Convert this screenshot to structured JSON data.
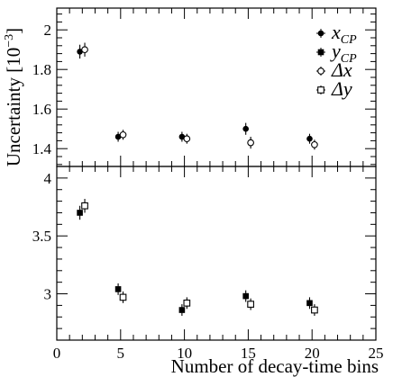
{
  "chart_data": [
    {
      "type": "scatter",
      "panel": "top",
      "ylabel_main": "Uncertainty [10",
      "ylabel_exp": "−3",
      "ylabel_close": "]",
      "ylim": [
        1.31,
        2.11
      ],
      "yticks": [
        1.4,
        1.6,
        1.8,
        2.0
      ],
      "ytick_labels": [
        "1.4",
        "1.6",
        "1.8",
        "2"
      ],
      "xlim": [
        0,
        25
      ],
      "legend_position": "top-right",
      "series": [
        {
          "legend_main": "x",
          "legend_sub": "CP",
          "marker": "filled-circle",
          "points": [
            {
              "x": 2,
              "y": 1.89,
              "err": 0.035
            },
            {
              "x": 5,
              "y": 1.46,
              "err": 0.025
            },
            {
              "x": 10,
              "y": 1.46,
              "err": 0.025
            },
            {
              "x": 15,
              "y": 1.5,
              "err": 0.03
            },
            {
              "x": 20,
              "y": 1.45,
              "err": 0.025
            }
          ]
        },
        {
          "legend_main": "Δx",
          "legend_sub": "",
          "marker": "open-circle",
          "points": [
            {
              "x": 2,
              "y": 1.9,
              "err": 0.035
            },
            {
              "x": 5,
              "y": 1.47,
              "err": 0.025
            },
            {
              "x": 10,
              "y": 1.45,
              "err": 0.025
            },
            {
              "x": 15,
              "y": 1.43,
              "err": 0.03
            },
            {
              "x": 20,
              "y": 1.42,
              "err": 0.025
            }
          ]
        }
      ]
    },
    {
      "type": "scatter",
      "panel": "bottom",
      "xlabel": "Number of decay-time bins",
      "xlim": [
        0,
        25
      ],
      "xticks": [
        0,
        5,
        10,
        15,
        20,
        25
      ],
      "ylim": [
        2.6,
        4.1
      ],
      "yticks": [
        3.0,
        3.5,
        4.0
      ],
      "ytick_labels": [
        "3",
        "3.5",
        "4"
      ],
      "series": [
        {
          "legend_main": "y",
          "legend_sub": "CP",
          "marker": "filled-square",
          "points": [
            {
              "x": 2,
              "y": 3.7,
              "err": 0.06
            },
            {
              "x": 5,
              "y": 3.04,
              "err": 0.05
            },
            {
              "x": 10,
              "y": 2.86,
              "err": 0.05
            },
            {
              "x": 15,
              "y": 2.98,
              "err": 0.05
            },
            {
              "x": 20,
              "y": 2.92,
              "err": 0.05
            }
          ]
        },
        {
          "legend_main": "Δy",
          "legend_sub": "",
          "marker": "open-square",
          "points": [
            {
              "x": 2,
              "y": 3.76,
              "err": 0.06
            },
            {
              "x": 5,
              "y": 2.97,
              "err": 0.05
            },
            {
              "x": 10,
              "y": 2.92,
              "err": 0.05
            },
            {
              "x": 15,
              "y": 2.91,
              "err": 0.05
            },
            {
              "x": 20,
              "y": 2.86,
              "err": 0.05
            }
          ]
        }
      ]
    }
  ]
}
